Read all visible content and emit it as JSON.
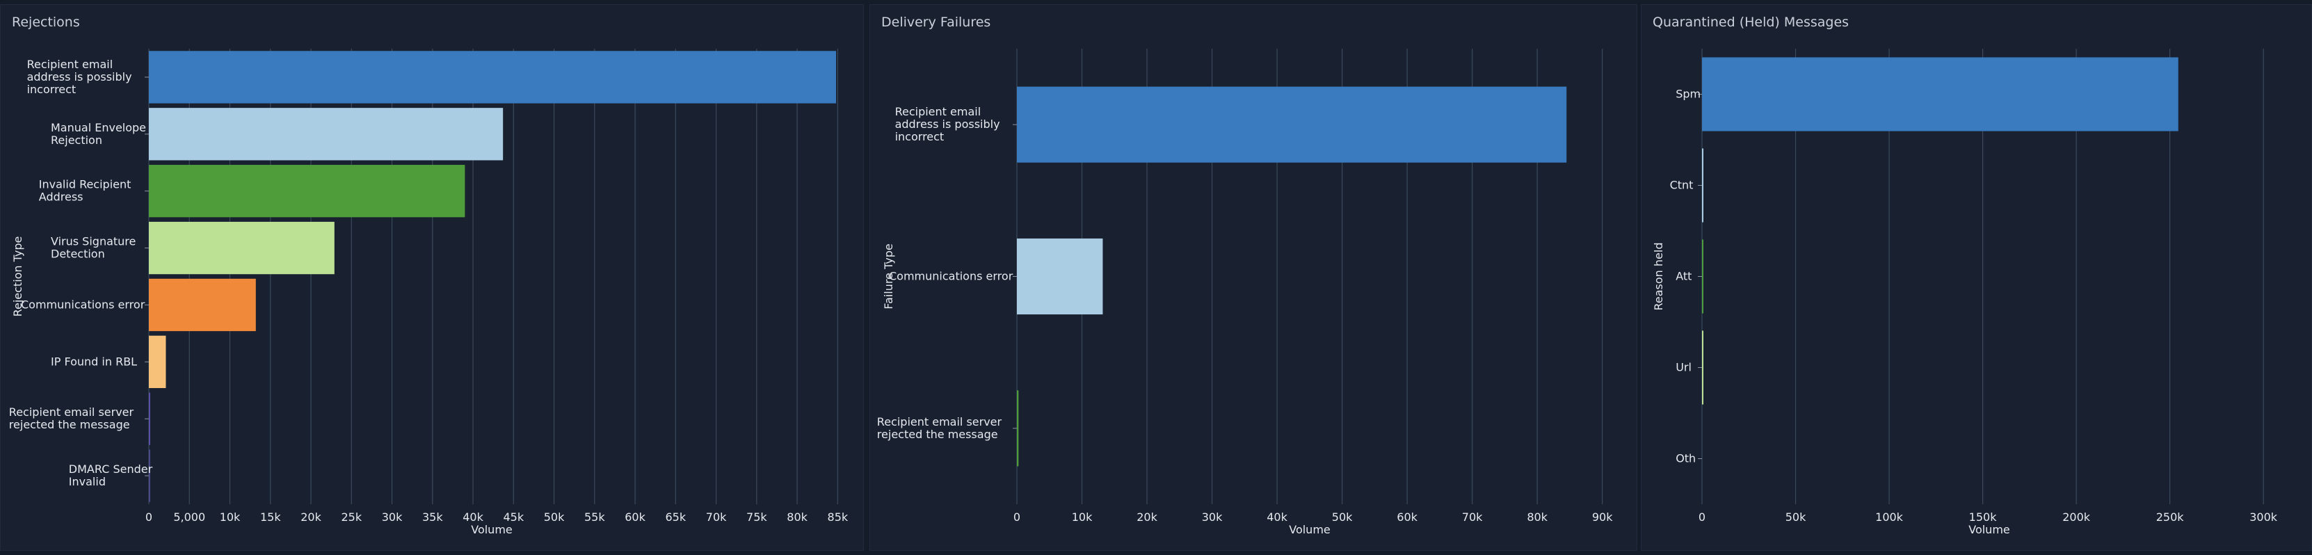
{
  "chart_data": [
    {
      "type": "bar",
      "orientation": "horizontal",
      "title": "Rejections",
      "xlabel": "Volume",
      "ylabel": "Rejection Type",
      "xlim": [
        0,
        86000
      ],
      "xticks": [
        0,
        5000,
        10000,
        15000,
        20000,
        25000,
        30000,
        35000,
        40000,
        45000,
        50000,
        55000,
        60000,
        65000,
        70000,
        75000,
        80000,
        85000
      ],
      "xtick_labels": [
        "0",
        "5,000",
        "10k",
        "15k",
        "20k",
        "25k",
        "30k",
        "35k",
        "40k",
        "45k",
        "50k",
        "55k",
        "60k",
        "65k",
        "70k",
        "75k",
        "80k",
        "85k"
      ],
      "grid": true,
      "categories": [
        "Recipient email address is possibly incorrect",
        "Manual Envelope Rejection",
        "Invalid Recipient Address",
        "Virus Signature Detection",
        "Communications error",
        "IP Found in RBL",
        "Recipient email server rejected the message",
        "DMARC Sender Invalid"
      ],
      "category_lines": [
        [
          "Recipient email",
          "address is possibly",
          "incorrect"
        ],
        [
          "Manual Envelope",
          "Rejection"
        ],
        [
          "Invalid Recipient",
          "Address"
        ],
        [
          "Virus Signature",
          "Detection"
        ],
        [
          "Communications error"
        ],
        [
          "IP Found in RBL"
        ],
        [
          "Recipient email server",
          "rejected the message"
        ],
        [
          "DMARC Sender",
          "Invalid"
        ]
      ],
      "values": [
        84800,
        43700,
        39000,
        22900,
        13200,
        2100,
        150,
        40
      ],
      "colors": [
        "#3a7bbf",
        "#abcde4",
        "#4f9d3a",
        "#bde194",
        "#f08a3a",
        "#f7c17a",
        "#5b4fa8",
        "#4a4a8a"
      ]
    },
    {
      "type": "bar",
      "orientation": "horizontal",
      "title": "Delivery Failures",
      "xlabel": "Volume",
      "ylabel": "Failure Type",
      "xlim": [
        0,
        91000
      ],
      "xticks": [
        0,
        10000,
        20000,
        30000,
        40000,
        50000,
        60000,
        70000,
        80000,
        90000
      ],
      "xtick_labels": [
        "0",
        "10k",
        "20k",
        "30k",
        "40k",
        "50k",
        "60k",
        "70k",
        "80k",
        "90k"
      ],
      "grid": true,
      "categories": [
        "Recipient email address is possibly incorrect",
        "Communications error",
        "Recipient email server rejected the message"
      ],
      "category_lines": [
        [
          "Recipient email",
          "address is possibly",
          "incorrect"
        ],
        [
          "Communications error"
        ],
        [
          "Recipient email server",
          "rejected the message"
        ]
      ],
      "values": [
        84500,
        13200,
        250
      ],
      "colors": [
        "#3a7bbf",
        "#abcde4",
        "#4f9d3a"
      ]
    },
    {
      "type": "bar",
      "orientation": "horizontal",
      "title": "Quarantined (Held) Messages",
      "xlabel": "Volume",
      "ylabel": "Reason held",
      "xlim": [
        0,
        307000
      ],
      "xticks": [
        0,
        50000,
        100000,
        150000,
        200000,
        250000,
        300000
      ],
      "xtick_labels": [
        "0",
        "50k",
        "100k",
        "150k",
        "200k",
        "250k",
        "300k"
      ],
      "grid": true,
      "categories": [
        "Spm",
        "Ctnt",
        "Att",
        "Url",
        "Oth"
      ],
      "category_lines": [
        [
          "Spm"
        ],
        [
          "Ctnt"
        ],
        [
          "Att"
        ],
        [
          "Url"
        ],
        [
          "Oth"
        ]
      ],
      "values": [
        254500,
        600,
        300,
        300,
        0
      ],
      "colors": [
        "#3a7bbf",
        "#abcde4",
        "#4f9d3a",
        "#bde194",
        "#f08a3a"
      ]
    }
  ]
}
